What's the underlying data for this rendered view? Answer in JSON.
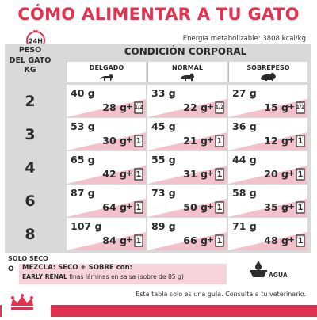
{
  "title": "CÓMO ALIMENTAR A TU GATO",
  "badge_24h": "24H",
  "energy": "Energía metabolizable: 3808 kcal/kg",
  "table": {
    "peso_header_line1": "PESO",
    "peso_header_line2": "DEL GATO",
    "peso_header_line3": "KG",
    "condicion_header": "CONDICIÓN CORPORAL",
    "columns": [
      "DELGADO",
      "NORMAL",
      "SOBREPESO"
    ],
    "rows": [
      {
        "kg": "2",
        "cells": [
          {
            "dry": "40 g",
            "mix": "28 g",
            "plus": "+",
            "pouch": "1/2"
          },
          {
            "dry": "33 g",
            "mix": "22 g",
            "plus": "+",
            "pouch": "1/2"
          },
          {
            "dry": "27 g",
            "mix": "15 g",
            "plus": "+",
            "pouch": "1/2"
          }
        ]
      },
      {
        "kg": "3",
        "cells": [
          {
            "dry": "53 g",
            "mix": "30 g",
            "plus": "+",
            "pouch": "1"
          },
          {
            "dry": "45 g",
            "mix": "21 g",
            "plus": "+",
            "pouch": "1"
          },
          {
            "dry": "36 g",
            "mix": "12 g",
            "plus": "+",
            "pouch": "1"
          }
        ]
      },
      {
        "kg": "4",
        "cells": [
          {
            "dry": "65 g",
            "mix": "42 g",
            "plus": "+",
            "pouch": "1"
          },
          {
            "dry": "55 g",
            "mix": "31 g",
            "plus": "+",
            "pouch": "1"
          },
          {
            "dry": "44 g",
            "mix": "20 g",
            "plus": "+",
            "pouch": "1"
          }
        ]
      },
      {
        "kg": "6",
        "cells": [
          {
            "dry": "87 g",
            "mix": "64 g",
            "plus": "+",
            "pouch": "1"
          },
          {
            "dry": "73 g",
            "mix": "50 g",
            "plus": "+",
            "pouch": "1"
          },
          {
            "dry": "58 g",
            "mix": "35 g",
            "plus": "+",
            "pouch": "1"
          }
        ]
      },
      {
        "kg": "8",
        "cells": [
          {
            "dry": "107 g",
            "mix": "84 g",
            "plus": "+",
            "pouch": "1"
          },
          {
            "dry": "89 g",
            "mix": "66 g",
            "plus": "+",
            "pouch": "1"
          },
          {
            "dry": "71 g",
            "mix": "48 g",
            "plus": "+",
            "pouch": "1"
          }
        ]
      }
    ]
  },
  "legend": {
    "solo_seco": "SOLO SECO",
    "o": "O",
    "line1": "MEZCLA: SECO + SOBRE con:",
    "line2_bold": "EARLY RENAL",
    "line2_rest": " finas láminas en salsa (sobre de 85 g)",
    "water": "AGUA"
  },
  "footnote": "Esta tabla solo es una guía. Consulta a tu veterinario.",
  "colors": {
    "brand_red": "#e2324f",
    "panel_grey": "#d9d9d9",
    "stripe_pink": "#f3c1cc",
    "legend_pink": "#f7d4dc"
  }
}
